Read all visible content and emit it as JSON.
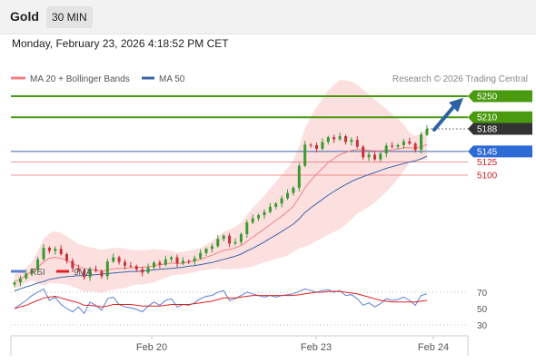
{
  "header": {
    "title": "Gold",
    "timeframe": "30 MIN"
  },
  "datetime": "Monday, February 23, 2026 4:18:52 PM CET",
  "legend": {
    "ma20": "MA 20 + Bollinger Bands",
    "ma50": "MA 50",
    "credit": "Research © 2026 Trading Central"
  },
  "colors": {
    "green": "#4a9a10",
    "blue": "#3b64a8",
    "red": "#e05050",
    "candle_up": "#3a9a2e",
    "candle_down": "#c8323a",
    "band_fill": "#fbdada",
    "arrow": "#2d63a6",
    "current": "#333333"
  },
  "levels": [
    {
      "label": "5250",
      "value": 5250,
      "kind": "resistance"
    },
    {
      "label": "5210",
      "value": 5210,
      "kind": "resistance"
    },
    {
      "label": "5188",
      "value": 5188,
      "kind": "current"
    },
    {
      "label": "5145",
      "value": 5145,
      "kind": "pivot"
    },
    {
      "label": "5125",
      "value": 5125,
      "kind": "support"
    },
    {
      "label": "5100",
      "value": 5100,
      "kind": "support"
    }
  ],
  "x_labels": [
    "Feb 20",
    "Feb 23",
    "Feb 24"
  ],
  "rsi_legend": {
    "rsi": "RSI",
    "ma": "9MA"
  },
  "rsi_levels": [
    "70",
    "50",
    "30"
  ],
  "chart_data": [
    {
      "type": "line",
      "title": "Gold 30 MIN",
      "x_ticks": [
        "Feb 20",
        "Feb 23",
        "Feb 24"
      ],
      "y_levels": [
        5250,
        5210,
        5188,
        5145,
        5125,
        5100
      ],
      "series": [
        {
          "name": "Gold",
          "values": [
            4896,
            4904,
            4913,
            4920,
            4940,
            4962,
            4956,
            4960,
            4950,
            4937,
            4923,
            4919,
            4906,
            4921,
            4918,
            4908,
            4936,
            4944,
            4935,
            4928,
            4927,
            4921,
            4915,
            4925,
            4934,
            4930,
            4940,
            4944,
            4932,
            4937,
            4936,
            4942,
            4952,
            4960,
            4965,
            4979,
            4985,
            4970,
            4973,
            4988,
            5010,
            5018,
            5024,
            5030,
            5040,
            5046,
            5056,
            5066,
            5076,
            5118,
            5158,
            5157,
            5150,
            5163,
            5172,
            5168,
            5174,
            5163,
            5167,
            5154,
            5134,
            5139,
            5130,
            5141,
            5156,
            5154,
            5157,
            5164,
            5160,
            5148,
            5177,
            5188
          ]
        },
        {
          "name": "MA 20",
          "values": [
            4898,
            4902,
            4910,
            4918,
            4925,
            4935,
            4942,
            4944,
            4942,
            4938,
            4932,
            4927,
            4922,
            4921,
            4920,
            4917,
            4920,
            4922,
            4923,
            4923,
            4924,
            4925,
            4925,
            4926,
            4928,
            4930,
            4931,
            4933,
            4932,
            4933,
            4935,
            4937,
            4940,
            4944,
            4948,
            4953,
            4957,
            4959,
            4962,
            4966,
            4974,
            4982,
            4990,
            4998,
            5006,
            5014,
            5022,
            5031,
            5041,
            5058,
            5076,
            5090,
            5102,
            5113,
            5124,
            5132,
            5139,
            5143,
            5147,
            5149,
            5148,
            5147,
            5146,
            5146,
            5147,
            5148,
            5150,
            5152,
            5152,
            5151,
            5154,
            5158
          ]
        },
        {
          "name": "MA 50",
          "values": [
            4880,
            4884,
            4888,
            4891,
            4895,
            4898,
            4902,
            4904,
            4906,
            4907,
            4908,
            4909,
            4909,
            4910,
            4911,
            4912,
            4913,
            4914,
            4915,
            4916,
            4917,
            4917,
            4918,
            4919,
            4920,
            4921,
            4922,
            4923,
            4924,
            4925,
            4927,
            4928,
            4930,
            4932,
            4934,
            4937,
            4940,
            4943,
            4946,
            4950,
            4956,
            4961,
            4967,
            4973,
            4980,
            4986,
            4993,
            5000,
            5007,
            5017,
            5029,
            5038,
            5046,
            5054,
            5062,
            5069,
            5076,
            5082,
            5088,
            5093,
            5097,
            5101,
            5105,
            5109,
            5113,
            5116,
            5119,
            5122,
            5125,
            5127,
            5131,
            5136
          ]
        }
      ]
    },
    {
      "type": "line",
      "title": "RSI",
      "ylim": [
        30,
        70
      ],
      "y_ticks": [
        70,
        50,
        30
      ],
      "series": [
        {
          "name": "RSI",
          "values": [
            50,
            55,
            60,
            66,
            70,
            74,
            60,
            64,
            55,
            50,
            46,
            52,
            44,
            58,
            54,
            48,
            62,
            64,
            55,
            52,
            51,
            49,
            46,
            53,
            58,
            54,
            60,
            62,
            52,
            55,
            54,
            57,
            62,
            65,
            66,
            70,
            72,
            60,
            62,
            66,
            70,
            68,
            66,
            64,
            66,
            64,
            66,
            67,
            68,
            71,
            74,
            72,
            70,
            72,
            73,
            70,
            72,
            66,
            67,
            62,
            54,
            57,
            52,
            56,
            62,
            60,
            61,
            64,
            60,
            54,
            66,
            68
          ]
        },
        {
          "name": "9MA",
          "values": [
            50,
            52,
            54,
            57,
            60,
            63,
            64,
            65,
            63,
            61,
            59,
            57,
            54,
            54,
            53,
            52,
            53,
            55,
            55,
            55,
            55,
            54,
            53,
            53,
            53,
            53,
            54,
            55,
            55,
            55,
            55,
            56,
            57,
            58,
            59,
            61,
            63,
            63,
            63,
            64,
            65,
            66,
            66,
            66,
            66,
            66,
            66,
            66,
            66,
            67,
            68,
            69,
            70,
            70,
            71,
            71,
            71,
            70,
            69,
            68,
            66,
            64,
            62,
            60,
            59,
            58,
            58,
            58,
            58,
            58,
            59,
            60
          ]
        }
      ]
    }
  ]
}
